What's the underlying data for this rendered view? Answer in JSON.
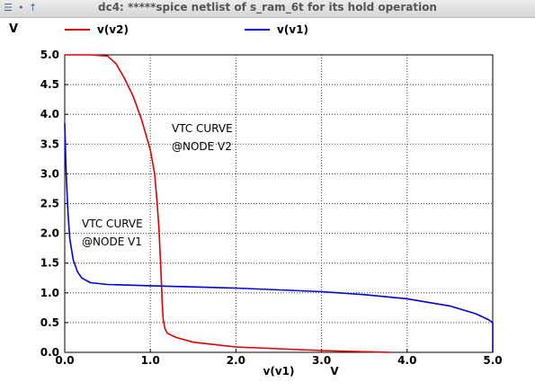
{
  "window": {
    "title": "dc4: *****spice netlist of s_ram_6t for its hold operation",
    "controls": [
      {
        "name": "menu-icon",
        "glyph": "☰"
      },
      {
        "name": "dot-icon",
        "glyph": "•"
      },
      {
        "name": "up-arrow-icon",
        "glyph": "↑"
      }
    ]
  },
  "chart_data": {
    "type": "line",
    "title": "",
    "xlabel": "v(v1)",
    "xunit": "V",
    "ylabel": "V",
    "xlim": [
      0,
      5
    ],
    "ylim": [
      0,
      5
    ],
    "xticks": [
      "0.0",
      "1.0",
      "2.0",
      "3.0",
      "4.0",
      "5.0"
    ],
    "yticks": [
      "0.0",
      "0.5",
      "1.0",
      "1.5",
      "2.0",
      "2.5",
      "3.0",
      "3.5",
      "4.0",
      "4.5",
      "5.0"
    ],
    "grid": true,
    "legend_position": "top",
    "series": [
      {
        "name": "v(v2)",
        "color": "#e00000",
        "x": [
          0.0,
          0.3,
          0.5,
          0.6,
          0.7,
          0.8,
          0.9,
          1.0,
          1.05,
          1.08,
          1.1,
          1.12,
          1.14,
          1.15,
          1.17,
          1.2,
          1.3,
          1.5,
          2.0,
          2.5,
          3.0,
          3.5,
          3.8
        ],
        "y": [
          5.0,
          5.0,
          4.98,
          4.85,
          4.6,
          4.3,
          3.9,
          3.4,
          3.0,
          2.5,
          2.1,
          1.5,
          0.8,
          0.55,
          0.4,
          0.32,
          0.25,
          0.17,
          0.09,
          0.06,
          0.03,
          0.01,
          0.0
        ]
      },
      {
        "name": "v(v1)",
        "color": "#0000e0",
        "x": [
          0.0,
          0.01,
          0.02,
          0.04,
          0.06,
          0.1,
          0.15,
          0.2,
          0.3,
          0.5,
          1.0,
          1.5,
          2.0,
          2.5,
          3.0,
          3.5,
          4.0,
          4.5,
          4.8,
          4.95,
          5.0,
          5.0
        ],
        "y": [
          3.85,
          3.3,
          2.9,
          2.3,
          1.9,
          1.55,
          1.35,
          1.25,
          1.17,
          1.14,
          1.12,
          1.1,
          1.08,
          1.05,
          1.02,
          0.97,
          0.9,
          0.78,
          0.65,
          0.55,
          0.5,
          0.0
        ]
      }
    ],
    "annotations": [
      {
        "lines": [
          "VTC CURVE",
          "@NODE V2"
        ],
        "x": 1.25,
        "y": 3.7
      },
      {
        "lines": [
          "VTC CURVE",
          "@NODE V1"
        ],
        "x": 0.2,
        "y": 2.1
      }
    ]
  }
}
